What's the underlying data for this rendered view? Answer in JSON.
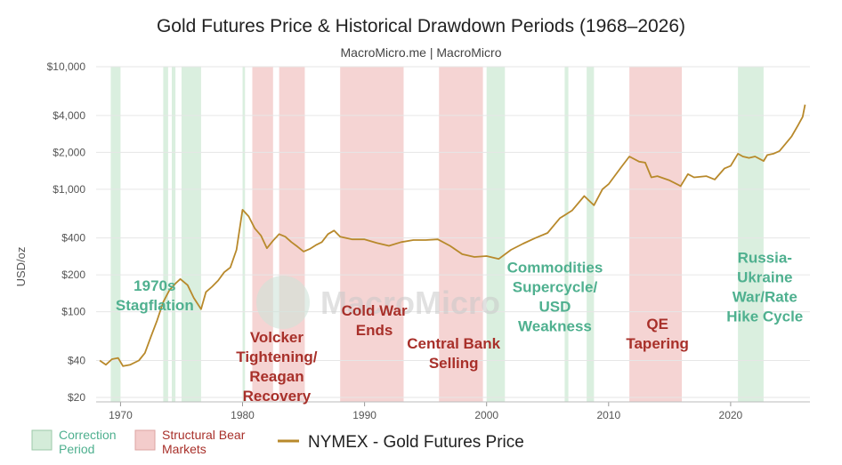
{
  "chart_data": {
    "type": "line",
    "title": "Gold Futures Price & Historical Drawdown Periods (1968–2026)",
    "subtitle": "MacroMicro.me | MacroMicro",
    "ylabel": "USD/oz",
    "yscale": "log",
    "ylim": [
      20,
      10000
    ],
    "xlim": [
      1968,
      2026.5
    ],
    "y_ticks": [
      20,
      40,
      100,
      200,
      400,
      1000,
      2000,
      4000,
      10000
    ],
    "y_tick_labels": [
      "$20",
      "$40",
      "$100",
      "$200",
      "$400",
      "$1,000",
      "$2,000",
      "$4,000",
      "$10,000"
    ],
    "x_ticks": [
      1970,
      1980,
      1990,
      2000,
      2010,
      2020
    ],
    "x_tick_labels": [
      "1970",
      "1980",
      "1990",
      "2000",
      "2010",
      "2020"
    ],
    "series": [
      {
        "name": "NYMEX - Gold Futures Price",
        "color": "#b8892b",
        "x": [
          1968.3,
          1968.8,
          1969.3,
          1969.8,
          1970.2,
          1970.8,
          1971.5,
          1972.0,
          1972.5,
          1973.0,
          1973.5,
          1974.0,
          1974.5,
          1974.9,
          1975.5,
          1976.0,
          1976.6,
          1977.0,
          1977.5,
          1978.0,
          1978.5,
          1979.0,
          1979.5,
          1980.0,
          1980.5,
          1981.0,
          1981.5,
          1982.0,
          1982.5,
          1983.0,
          1983.5,
          1984.0,
          1984.5,
          1985.0,
          1985.5,
          1986.0,
          1986.5,
          1987.0,
          1987.5,
          1988.0,
          1989.0,
          1990.0,
          1991.0,
          1992.0,
          1993.0,
          1994.0,
          1995.0,
          1996.0,
          1997.0,
          1998.0,
          1999.0,
          2000.0,
          2001.0,
          2002.0,
          2003.0,
          2004.0,
          2005.0,
          2006.0,
          2007.0,
          2008.0,
          2008.8,
          2009.5,
          2010.0,
          2011.0,
          2011.7,
          2012.5,
          2013.0,
          2013.5,
          2014.0,
          2015.0,
          2015.9,
          2016.5,
          2017.0,
          2018.0,
          2018.7,
          2019.5,
          2020.0,
          2020.6,
          2021.0,
          2021.5,
          2022.0,
          2022.7,
          2023.0,
          2023.5,
          2024.0,
          2024.5,
          2025.0,
          2025.5,
          2025.9,
          2026.1
        ],
        "values": [
          40,
          37,
          41,
          42,
          36,
          37,
          40,
          46,
          63,
          85,
          120,
          150,
          170,
          185,
          165,
          130,
          105,
          145,
          160,
          180,
          210,
          230,
          320,
          680,
          600,
          480,
          420,
          330,
          380,
          430,
          410,
          370,
          340,
          310,
          325,
          350,
          370,
          430,
          460,
          410,
          390,
          390,
          365,
          345,
          370,
          385,
          385,
          390,
          345,
          295,
          280,
          285,
          270,
          320,
          360,
          400,
          440,
          580,
          670,
          880,
          740,
          1000,
          1100,
          1500,
          1850,
          1680,
          1650,
          1250,
          1280,
          1180,
          1060,
          1330,
          1250,
          1280,
          1200,
          1480,
          1550,
          1950,
          1850,
          1800,
          1850,
          1700,
          1900,
          1950,
          2050,
          2350,
          2700,
          3300,
          3900,
          4900
        ]
      }
    ],
    "correction_periods": [
      [
        1969.2,
        1970.0
      ],
      [
        1973.5,
        1973.9
      ],
      [
        1974.2,
        1974.5
      ],
      [
        1975.0,
        1976.6
      ],
      [
        1980.0,
        1980.2
      ],
      [
        2000.0,
        2001.5
      ],
      [
        2006.4,
        2006.7
      ],
      [
        2008.2,
        2008.8
      ],
      [
        2020.6,
        2022.7
      ]
    ],
    "bear_markets": [
      [
        1980.8,
        1982.5
      ],
      [
        1983.0,
        1985.1
      ],
      [
        1988.0,
        1993.2
      ],
      [
        1996.1,
        1999.7
      ],
      [
        2011.7,
        2016.0
      ]
    ],
    "annotations": [
      {
        "lines": [
          "1970s",
          "Stagflation"
        ],
        "kind": "correction",
        "x": 1972.8,
        "y": 2.17
      },
      {
        "lines": [
          "Volcker",
          "Tightening/",
          "Reagan",
          "Recovery"
        ],
        "kind": "bear",
        "x": 1982.8,
        "y": 1.75
      },
      {
        "lines": [
          "Cold War",
          "Ends"
        ],
        "kind": "bear",
        "x": 1990.8,
        "y": 1.97
      },
      {
        "lines": [
          "Central Bank",
          "Selling"
        ],
        "kind": "bear",
        "x": 1997.3,
        "y": 1.7
      },
      {
        "lines": [
          "Commodities",
          "Supercycle/",
          "USD",
          "Weakness"
        ],
        "kind": "correction",
        "x": 2005.6,
        "y": 2.32
      },
      {
        "lines": [
          "QE",
          "Tapering"
        ],
        "kind": "bear",
        "x": 2014.0,
        "y": 1.86
      },
      {
        "lines": [
          "Russia-",
          "Ukraine",
          "War/Rate",
          "Hike Cycle"
        ],
        "kind": "correction",
        "x": 2022.8,
        "y": 2.4
      }
    ],
    "legend": [
      {
        "label_lines": [
          "Correction",
          "Period"
        ],
        "kind": "correction"
      },
      {
        "label_lines": [
          "Structural Bear",
          "Markets"
        ],
        "kind": "bear"
      },
      {
        "label": "NYMEX - Gold Futures Price",
        "kind": "line"
      }
    ],
    "watermark": "MacroMicro",
    "colors": {
      "correction_fill": "#d4ecd9",
      "correction_text": "#4fb08f",
      "bear_fill": "#f3cccb",
      "bear_text": "#a8302a",
      "line": "#b8892b",
      "grid": "#e6e6e6"
    }
  }
}
